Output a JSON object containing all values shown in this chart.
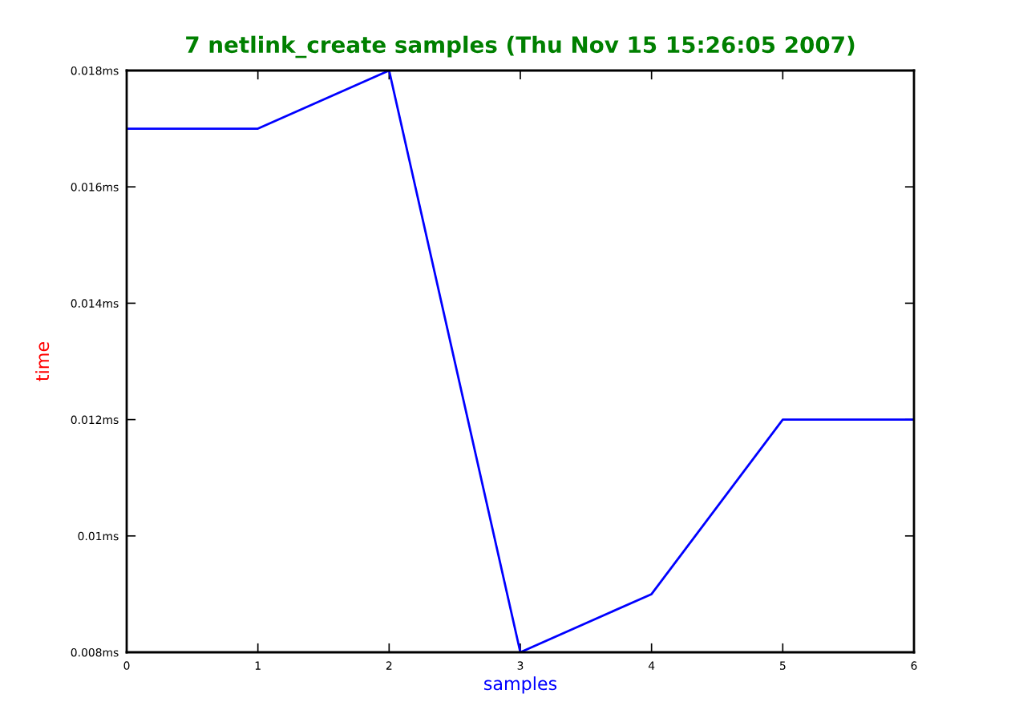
{
  "chart_data": {
    "type": "line",
    "title": "7 netlink_create samples (Thu Nov 15 15:26:05 2007)",
    "xlabel": "samples",
    "ylabel": "time",
    "x": [
      0,
      1,
      2,
      3,
      4,
      5,
      6
    ],
    "series": [
      {
        "color": "#0000ff",
        "values": [
          0.017,
          0.017,
          0.018,
          0.008,
          0.009,
          0.012,
          0.012
        ]
      }
    ],
    "xlim": [
      0,
      6
    ],
    "xticks": [
      0,
      1,
      2,
      3,
      4,
      5,
      6
    ],
    "ylim": [
      0.008,
      0.018
    ],
    "yticks": [
      {
        "value": 0.008,
        "label": "0.008ms"
      },
      {
        "value": 0.01,
        "label": "0.01ms"
      },
      {
        "value": 0.012,
        "label": "0.012ms"
      },
      {
        "value": 0.014,
        "label": "0.014ms"
      },
      {
        "value": 0.016,
        "label": "0.016ms"
      },
      {
        "value": 0.018,
        "label": "0.018ms"
      }
    ],
    "grid": false
  }
}
